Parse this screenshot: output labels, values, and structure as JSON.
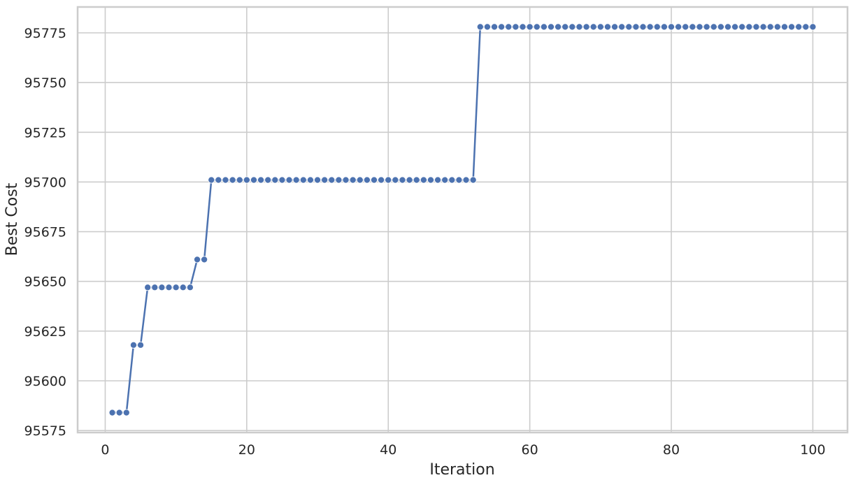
{
  "chart_data": {
    "type": "line",
    "title": "",
    "xlabel": "Iteration",
    "ylabel": "Best Cost",
    "xlim": [
      -3.9,
      104.9
    ],
    "ylim": [
      95574,
      95788
    ],
    "xticks": [
      0,
      20,
      40,
      60,
      80,
      100
    ],
    "yticks": [
      95575,
      95600,
      95625,
      95650,
      95675,
      95700,
      95725,
      95750,
      95775
    ],
    "grid": true,
    "legend": null,
    "series": [
      {
        "name": "Best Cost",
        "color": "#4c72b0",
        "marker": "circle",
        "segments": [
          {
            "x_from": 1,
            "x_to": 3,
            "y": 95584
          },
          {
            "x_from": 4,
            "x_to": 5,
            "y": 95618
          },
          {
            "x_from": 6,
            "x_to": 12,
            "y": 95647
          },
          {
            "x_from": 13,
            "x_to": 14,
            "y": 95661
          },
          {
            "x_from": 15,
            "x_to": 52,
            "y": 95701
          },
          {
            "x_from": 53,
            "x_to": 100,
            "y": 95778
          }
        ]
      }
    ]
  }
}
